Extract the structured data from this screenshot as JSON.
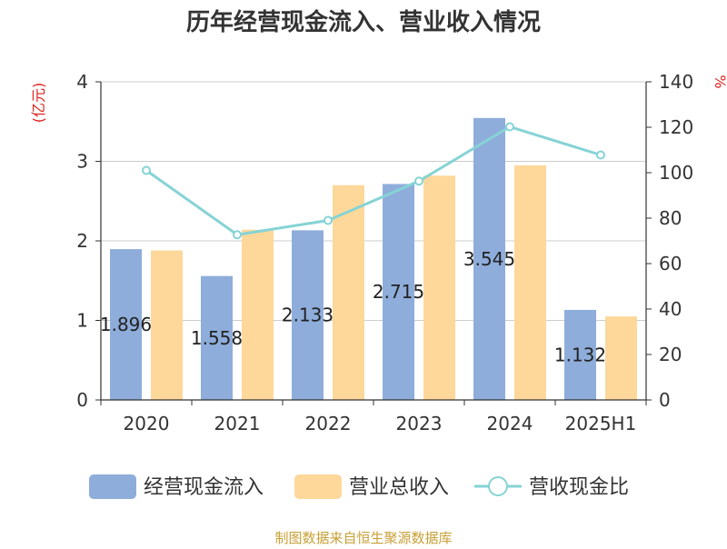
{
  "chart_data": {
    "type": "bar",
    "title": "历年经营现金流入、营业收入情况",
    "left_axis_label": "(亿元)",
    "right_axis_label": "%",
    "categories": [
      "2020",
      "2021",
      "2022",
      "2023",
      "2024",
      "2025H1"
    ],
    "ylim_left": [
      0,
      4
    ],
    "yticks_left": [
      "0",
      "1",
      "2",
      "3",
      "4"
    ],
    "ylim_right": [
      0,
      140
    ],
    "yticks_right": [
      "0",
      "20",
      "40",
      "60",
      "80",
      "100",
      "120",
      "140"
    ],
    "grid": true,
    "legend_position": "bottom",
    "series": [
      {
        "name": "经营现金流入",
        "kind": "bar",
        "axis": "left",
        "color": "#8EADDB",
        "values": [
          1.896,
          1.558,
          2.133,
          2.715,
          3.545,
          1.132
        ],
        "labels": [
          "1.896",
          "1.558",
          "2.133",
          "2.715",
          "3.545",
          "1.132"
        ]
      },
      {
        "name": "营业总收入",
        "kind": "bar",
        "axis": "left",
        "color": "#FDD89A",
        "values": [
          1.88,
          2.14,
          2.7,
          2.82,
          2.95,
          1.05
        ]
      },
      {
        "name": "营收现金比",
        "kind": "line",
        "axis": "right",
        "color": "#86D3D5",
        "values": [
          101,
          72.7,
          79,
          96.3,
          120.2,
          107.8
        ]
      }
    ]
  },
  "source_note": "制图数据来自恒生聚源数据库"
}
